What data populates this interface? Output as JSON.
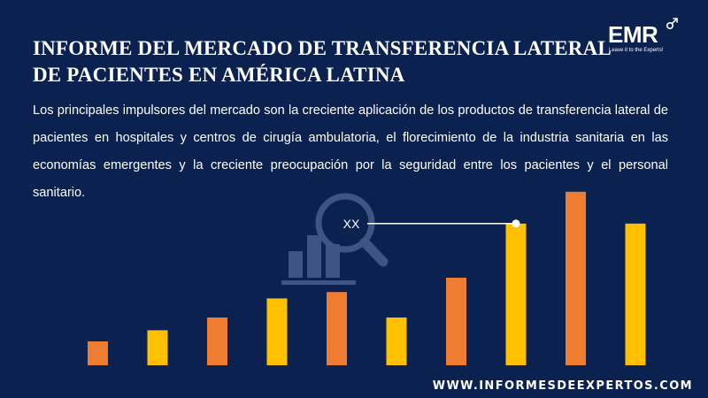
{
  "header": {
    "title_line1": "INFORME DEL MERCADO DE TRANSFERENCIA LATERAL",
    "title_line2": "DE PACIENTES EN AMÉRICA LATINA"
  },
  "logo": {
    "text": "EMR",
    "tagline": "Leave it to the Experts!"
  },
  "description": "Los principales impulsores del mercado son la creciente aplicación de los productos de transferencia lateral de pacientes en hospitales y centros de cirugía ambulatoria, el florecimiento de la industria sanitaria en las economías emergentes y la creciente preocupación por la seguridad entre los pacientes y el personal sanitario.",
  "footer": {
    "url": "WWW.INFORMESDEEXPERTOS.COM"
  },
  "icons": {
    "center": "bar-chart-magnifier-icon",
    "logo": "arrow-up-right-icon"
  },
  "colors": {
    "background": "#0b2150",
    "orange": "#ee7d31",
    "yellow": "#fec000",
    "icon": "#3e5584"
  },
  "chart_data": {
    "type": "bar",
    "values": [
      15,
      22,
      30,
      42,
      46,
      30,
      55,
      89,
      109,
      89
    ],
    "bar_colors": [
      "orange",
      "yellow",
      "orange",
      "yellow",
      "orange",
      "yellow",
      "orange",
      "yellow",
      "orange",
      "yellow"
    ],
    "ylim": [
      0,
      110
    ],
    "annotation": {
      "label": "XX",
      "bar_index": 7
    }
  }
}
